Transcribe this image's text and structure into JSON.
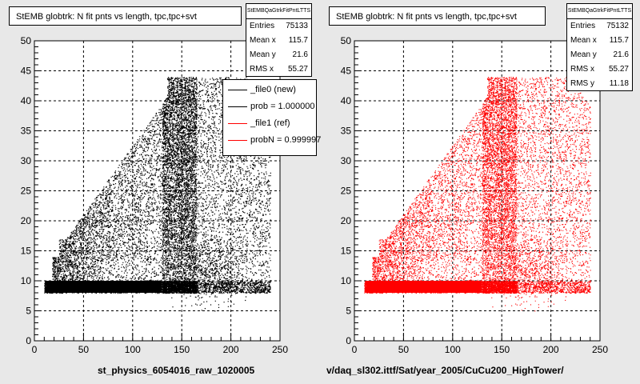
{
  "pads": [
    {
      "title": "StEMB globtrk: N fit pnts vs length, tpc,tpc+svt",
      "stats": {
        "name": "StEMBQaGtrkFitPntLTTS",
        "rows": [
          {
            "label": "Entries",
            "value": "75133"
          },
          {
            "label": "Mean x",
            "value": "115.7"
          },
          {
            "label": "Mean y",
            "value": "21.6"
          },
          {
            "label": "RMS x",
            "value": "55.27"
          }
        ]
      },
      "legend": [
        {
          "label": "_file0 (new)",
          "color": "#000000"
        },
        {
          "label": "prob = 1.000000",
          "color": "#000000"
        },
        {
          "label": "_file1 (ref)",
          "color": "#ff0000"
        },
        {
          "label": "probN = 0.999997",
          "color": "#ff0000"
        }
      ],
      "xtitle": "st_physics_6054016_raw_1020005"
    },
    {
      "title": "StEMB globtrk: N fit pnts vs length, tpc,tpc+svt",
      "stats": {
        "name": "StEMBQaGtrkFitPntLTTS",
        "rows": [
          {
            "label": "Entries",
            "value": "75132"
          },
          {
            "label": "Mean x",
            "value": "115.7"
          },
          {
            "label": "Mean y",
            "value": "21.6"
          },
          {
            "label": "RMS x",
            "value": "55.27"
          },
          {
            "label": "RMS y",
            "value": "11.18"
          }
        ]
      },
      "xtitle": "v/daq_sl302.ittf/Sat/year_2005/CuCu200_HighTower/"
    }
  ],
  "chart_data": [
    {
      "type": "scatter",
      "title": "StEMB globtrk: N fit pnts vs length, tpc,tpc+svt",
      "xlabel": "st_physics_6054016_raw_1020005",
      "ylabel": "",
      "xlim": [
        0,
        250
      ],
      "ylim": [
        0,
        50
      ],
      "xticks": [
        0,
        50,
        100,
        150,
        200,
        250
      ],
      "yticks": [
        0,
        5,
        10,
        15,
        20,
        25,
        30,
        35,
        40,
        45,
        50
      ],
      "grid": true,
      "color": "#000000",
      "entries": 75133,
      "mean_x": 115.7,
      "mean_y": 21.6,
      "rms_x": 55.27,
      "legend_position": "top-right"
    },
    {
      "type": "scatter",
      "title": "StEMB globtrk: N fit pnts vs length, tpc,tpc+svt",
      "xlabel": "v/daq_sl302.ittf/Sat/year_2005/CuCu200_HighTower/",
      "ylabel": "",
      "xlim": [
        0,
        250
      ],
      "ylim": [
        0,
        50
      ],
      "xticks": [
        0,
        50,
        100,
        150,
        200,
        250
      ],
      "yticks": [
        0,
        5,
        10,
        15,
        20,
        25,
        30,
        35,
        40,
        45,
        50
      ],
      "grid": true,
      "color": "#ff0000",
      "entries": 75132,
      "mean_x": 115.7,
      "mean_y": 21.6,
      "rms_x": 55.27,
      "rms_y": 11.18
    }
  ]
}
